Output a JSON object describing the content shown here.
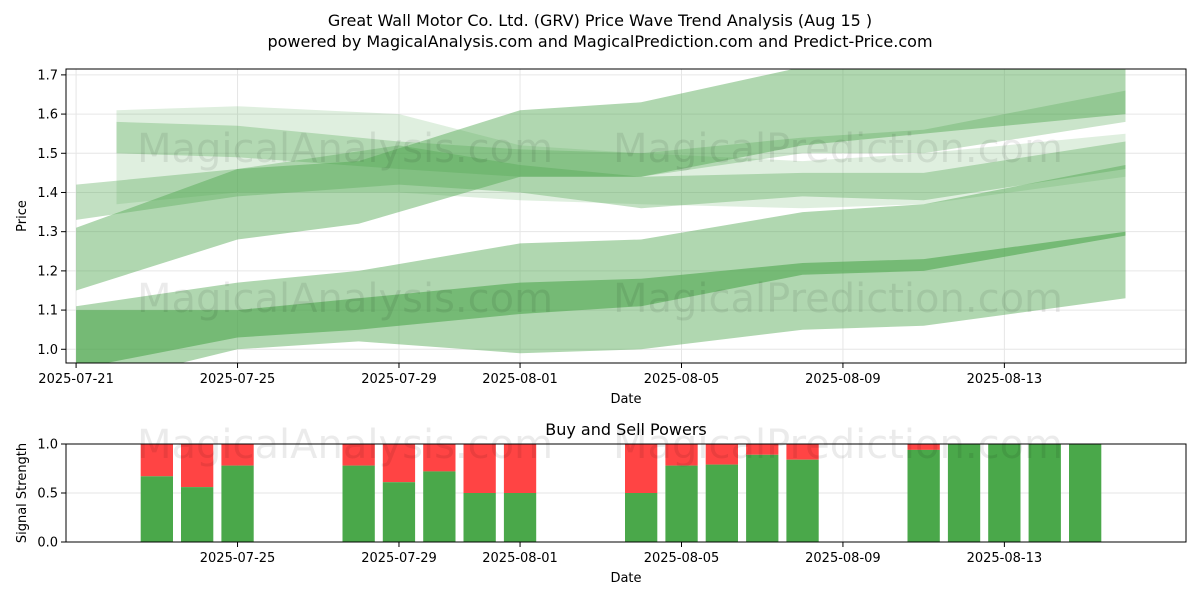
{
  "colors": {
    "band": "#4fa64f",
    "band_light": "#a8d5a8",
    "buy": "#4aa84a",
    "sell": "#ff4444",
    "grid": "#e6e6e6"
  },
  "header": {
    "title": "Great Wall Motor Co. Ltd. (GRV) Price Wave Trend Analysis (Aug 15 )",
    "subtitle": "powered by MagicalAnalysis.com and MagicalPrediction.com and Predict-Price.com"
  },
  "watermarks": [
    "MagicalAnalysis.com",
    "MagicalPrediction.com"
  ],
  "chart_data": [
    {
      "type": "area",
      "title": "",
      "xlabel": "Date",
      "ylabel": "Price",
      "xlim": [
        "2025-07-20T18:00",
        "2025-08-17T12:00"
      ],
      "ylim": [
        0.965,
        1.715
      ],
      "x_ticks": [
        "2025-07-21",
        "2025-07-25",
        "2025-07-29",
        "2025-08-01",
        "2025-08-05",
        "2025-08-09",
        "2025-08-13"
      ],
      "y_ticks": [
        1.0,
        1.1,
        1.2,
        1.3,
        1.4,
        1.5,
        1.6,
        1.7
      ],
      "grid": true,
      "series": [
        {
          "name": "wave-upper-wide",
          "opacity": 0.45,
          "points": [
            {
              "x": "2025-07-21",
              "low": 1.15,
              "high": 1.31
            },
            {
              "x": "2025-07-25",
              "low": 1.28,
              "high": 1.46
            },
            {
              "x": "2025-07-28",
              "low": 1.32,
              "high": 1.48
            },
            {
              "x": "2025-08-01",
              "low": 1.44,
              "high": 1.61
            },
            {
              "x": "2025-08-04",
              "low": 1.44,
              "high": 1.63
            },
            {
              "x": "2025-08-08",
              "low": 1.52,
              "high": 1.72
            },
            {
              "x": "2025-08-16",
              "low": 1.6,
              "high": 1.79
            }
          ]
        },
        {
          "name": "wave-upper-mid",
          "opacity": 0.35,
          "points": [
            {
              "x": "2025-07-21",
              "low": 1.33,
              "high": 1.42
            },
            {
              "x": "2025-07-25",
              "low": 1.39,
              "high": 1.46
            },
            {
              "x": "2025-07-29",
              "low": 1.42,
              "high": 1.52
            },
            {
              "x": "2025-08-01",
              "low": 1.4,
              "high": 1.47
            },
            {
              "x": "2025-08-04",
              "low": 1.36,
              "high": 1.44
            },
            {
              "x": "2025-08-08",
              "low": 1.39,
              "high": 1.45
            },
            {
              "x": "2025-08-11",
              "low": 1.38,
              "high": 1.45
            },
            {
              "x": "2025-08-16",
              "low": 1.46,
              "high": 1.53
            }
          ]
        },
        {
          "name": "wave-upper-top",
          "opacity": 0.3,
          "points": [
            {
              "x": "2025-07-22",
              "low": 1.5,
              "high": 1.58
            },
            {
              "x": "2025-07-25",
              "low": 1.49,
              "high": 1.57
            },
            {
              "x": "2025-07-29",
              "low": 1.46,
              "high": 1.53
            },
            {
              "x": "2025-08-01",
              "low": 1.44,
              "high": 1.51
            },
            {
              "x": "2025-08-04",
              "low": 1.44,
              "high": 1.5
            },
            {
              "x": "2025-08-08",
              "low": 1.5,
              "high": 1.54
            },
            {
              "x": "2025-08-11",
              "low": 1.5,
              "high": 1.56
            },
            {
              "x": "2025-08-16",
              "low": 1.58,
              "high": 1.66
            }
          ]
        },
        {
          "name": "wave-upper-faint",
          "opacity": 0.18,
          "points": [
            {
              "x": "2025-07-22",
              "low": 1.37,
              "high": 1.61
            },
            {
              "x": "2025-07-25",
              "low": 1.4,
              "high": 1.62
            },
            {
              "x": "2025-07-29",
              "low": 1.4,
              "high": 1.6
            },
            {
              "x": "2025-08-01",
              "low": 1.38,
              "high": 1.52
            },
            {
              "x": "2025-08-04",
              "low": 1.37,
              "high": 1.5
            },
            {
              "x": "2025-08-08",
              "low": 1.36,
              "high": 1.48
            },
            {
              "x": "2025-08-11",
              "low": 1.37,
              "high": 1.5
            },
            {
              "x": "2025-08-16",
              "low": 1.44,
              "high": 1.55
            }
          ]
        },
        {
          "name": "wave-lower-wide",
          "opacity": 0.45,
          "points": [
            {
              "x": "2025-07-21",
              "low": 0.9,
              "high": 1.11
            },
            {
              "x": "2025-07-25",
              "low": 1.0,
              "high": 1.17
            },
            {
              "x": "2025-07-28",
              "low": 1.02,
              "high": 1.2
            },
            {
              "x": "2025-08-01",
              "low": 0.99,
              "high": 1.27
            },
            {
              "x": "2025-08-04",
              "low": 1.0,
              "high": 1.28
            },
            {
              "x": "2025-08-08",
              "low": 1.05,
              "high": 1.35
            },
            {
              "x": "2025-08-11",
              "low": 1.06,
              "high": 1.37
            },
            {
              "x": "2025-08-16",
              "low": 1.13,
              "high": 1.47
            }
          ]
        },
        {
          "name": "wave-lower-core",
          "opacity": 0.6,
          "points": [
            {
              "x": "2025-07-21",
              "low": 0.95,
              "high": 1.1
            },
            {
              "x": "2025-07-25",
              "low": 1.03,
              "high": 1.1
            },
            {
              "x": "2025-07-28",
              "low": 1.05,
              "high": 1.13
            },
            {
              "x": "2025-08-01",
              "low": 1.09,
              "high": 1.17
            },
            {
              "x": "2025-08-04",
              "low": 1.11,
              "high": 1.18
            },
            {
              "x": "2025-08-08",
              "low": 1.19,
              "high": 1.22
            },
            {
              "x": "2025-08-11",
              "low": 1.2,
              "high": 1.23
            },
            {
              "x": "2025-08-16",
              "low": 1.29,
              "high": 1.3
            }
          ]
        }
      ]
    },
    {
      "type": "bar",
      "title": "Buy and Sell Powers",
      "xlabel": "Date",
      "ylabel": "Signal Strength",
      "xlim": [
        "2025-07-20T18:00",
        "2025-08-17T12:00"
      ],
      "ylim": [
        0.0,
        1.0
      ],
      "x_ticks": [
        "2025-07-25",
        "2025-07-29",
        "2025-08-01",
        "2025-08-05",
        "2025-08-09",
        "2025-08-13"
      ],
      "y_ticks": [
        0.0,
        0.5,
        1.0
      ],
      "grid": true,
      "series": [
        {
          "name": "Buy",
          "color": "#4aa84a"
        },
        {
          "name": "Sell",
          "color": "#ff4444"
        }
      ],
      "bars": [
        {
          "date": "2025-07-23",
          "buy": 0.67
        },
        {
          "date": "2025-07-24",
          "buy": 0.56
        },
        {
          "date": "2025-07-25",
          "buy": 0.78
        },
        {
          "date": "2025-07-28",
          "buy": 0.78
        },
        {
          "date": "2025-07-29",
          "buy": 0.61
        },
        {
          "date": "2025-07-30",
          "buy": 0.72
        },
        {
          "date": "2025-07-31",
          "buy": 0.5
        },
        {
          "date": "2025-08-01",
          "buy": 0.5
        },
        {
          "date": "2025-08-04",
          "buy": 0.5
        },
        {
          "date": "2025-08-05",
          "buy": 0.78
        },
        {
          "date": "2025-08-06",
          "buy": 0.79
        },
        {
          "date": "2025-08-07",
          "buy": 0.89
        },
        {
          "date": "2025-08-08",
          "buy": 0.84
        },
        {
          "date": "2025-08-11",
          "buy": 0.94
        },
        {
          "date": "2025-08-12",
          "buy": 1.0
        },
        {
          "date": "2025-08-13",
          "buy": 1.0
        },
        {
          "date": "2025-08-14",
          "buy": 1.0
        },
        {
          "date": "2025-08-15",
          "buy": 1.0
        }
      ]
    }
  ]
}
